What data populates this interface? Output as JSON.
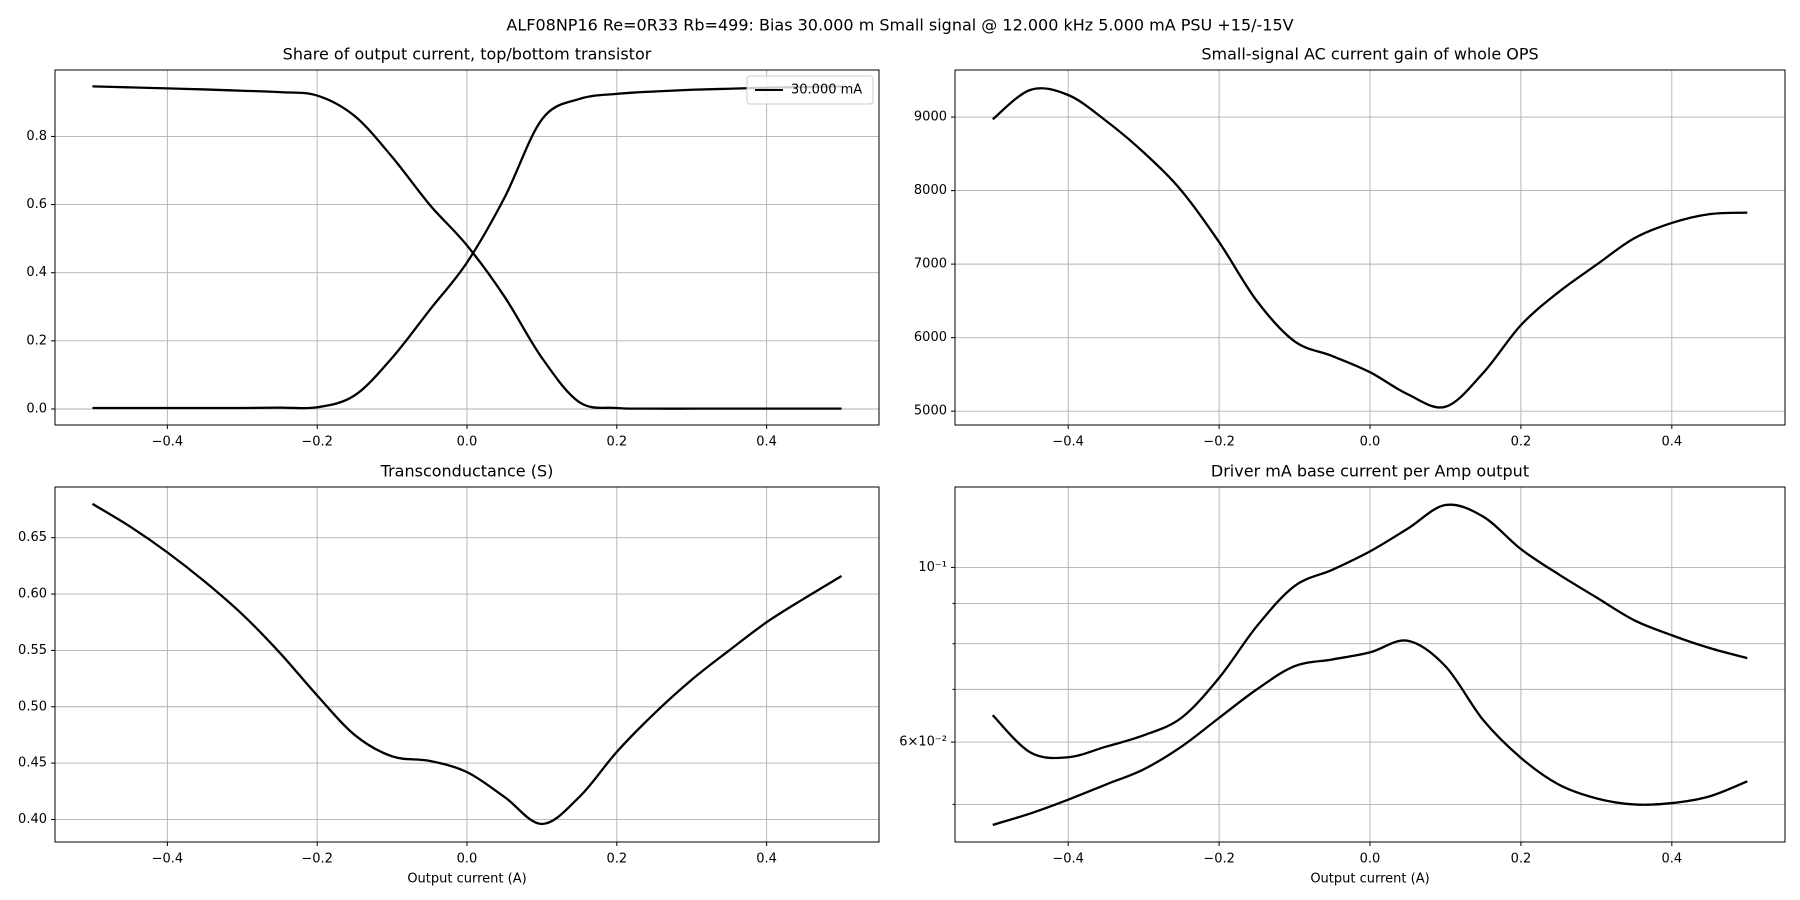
{
  "title": "ALF08NP16 Re=0R33 Rb=499: Bias 30.000 m Small signal @ 12.000 kHz 5.000 mA PSU +15/-15V",
  "chart_data": [
    {
      "type": "line",
      "title": "Share of output current, top/bottom transistor",
      "x": [
        -0.5,
        -0.45,
        -0.4,
        -0.35,
        -0.3,
        -0.25,
        -0.2,
        -0.15,
        -0.1,
        -0.05,
        0,
        0.05,
        0.1,
        0.15,
        0.2,
        0.25,
        0.3,
        0.35,
        0.4,
        0.45,
        0.5
      ],
      "series": [
        {
          "name": "30.000 mA",
          "color": "#000000",
          "values": [
            0.947,
            0.944,
            0.941,
            0.938,
            0.934,
            0.93,
            0.92,
            0.86,
            0.74,
            0.6,
            0.48,
            0.33,
            0.15,
            0.02,
            0.003,
            0.001,
            0.001,
            0.001,
            0.001,
            0.001,
            0.001
          ]
        },
        {
          "color": "#000000",
          "values": [
            0.003,
            0.003,
            0.003,
            0.003,
            0.003,
            0.004,
            0.005,
            0.04,
            0.15,
            0.29,
            0.43,
            0.62,
            0.85,
            0.91,
            0.925,
            0.932,
            0.937,
            0.94,
            0.943,
            0.945,
            0.947
          ]
        }
      ],
      "xlim": [
        -0.55,
        0.55
      ],
      "xticks": [
        {
          "value": -0.4,
          "label": "−0.4"
        },
        {
          "value": -0.2,
          "label": "−0.2"
        },
        {
          "value": 0,
          "label": "0.0"
        },
        0.2,
        0.4
      ],
      "ylim": [
        -0.047,
        0.995
      ],
      "yticks": [
        {
          "value": 0,
          "label": "0.0"
        },
        0.2,
        0.4,
        0.6,
        0.8
      ],
      "grid": true,
      "legend": "upper right"
    },
    {
      "type": "line",
      "title": "Small-signal AC current gain of whole OPS",
      "x": [
        -0.5,
        -0.45,
        -0.4,
        -0.35,
        -0.3,
        -0.25,
        -0.2,
        -0.15,
        -0.1,
        -0.05,
        0,
        0.05,
        0.1,
        0.15,
        0.2,
        0.25,
        0.3,
        0.35,
        0.4,
        0.45,
        0.5
      ],
      "series": [
        {
          "color": "#000000",
          "values": [
            8970,
            9370,
            9300,
            8950,
            8520,
            8000,
            7300,
            6500,
            5950,
            5750,
            5530,
            5230,
            5060,
            5520,
            6170,
            6620,
            6990,
            7350,
            7560,
            7680,
            7700
          ]
        }
      ],
      "xlim": [
        -0.55,
        0.55
      ],
      "xticks": [
        {
          "value": -0.4,
          "label": "−0.4"
        },
        {
          "value": -0.2,
          "label": "−0.2"
        },
        {
          "value": 0,
          "label": "0.0"
        },
        0.2,
        0.4
      ],
      "ylim": [
        4812,
        9640
      ],
      "yticks": [
        5000,
        6000,
        7000,
        8000,
        9000
      ],
      "grid": true
    },
    {
      "type": "line",
      "title": "Transconductance (S)",
      "xlabel": "Output current (A)",
      "x": [
        -0.5,
        -0.45,
        -0.4,
        -0.35,
        -0.3,
        -0.25,
        -0.2,
        -0.15,
        -0.1,
        -0.05,
        0,
        0.05,
        0.1,
        0.15,
        0.2,
        0.25,
        0.3,
        0.35,
        0.4,
        0.45,
        0.5
      ],
      "series": [
        {
          "color": "#000000",
          "values": [
            0.68,
            0.66,
            0.637,
            0.611,
            0.582,
            0.548,
            0.51,
            0.475,
            0.456,
            0.452,
            0.442,
            0.42,
            0.396,
            0.42,
            0.46,
            0.494,
            0.524,
            0.55,
            0.575,
            0.596,
            0.616
          ]
        }
      ],
      "xlim": [
        -0.55,
        0.55
      ],
      "xticks": [
        {
          "value": -0.4,
          "label": "−0.4"
        },
        {
          "value": -0.2,
          "label": "−0.2"
        },
        {
          "value": 0,
          "label": "0.0"
        },
        0.2,
        0.4
      ],
      "ylim": [
        0.38,
        0.695
      ],
      "yticks": [
        {
          "value": 0.4,
          "label": "0.40"
        },
        0.45,
        {
          "value": 0.5,
          "label": "0.50"
        },
        0.55,
        {
          "value": 0.6,
          "label": "0.60"
        },
        0.65
      ],
      "grid": true
    },
    {
      "type": "line",
      "title": "Driver mA base current per Amp output",
      "xlabel": "Output current (A)",
      "x": [
        -0.5,
        -0.45,
        -0.4,
        -0.35,
        -0.3,
        -0.25,
        -0.2,
        -0.15,
        -0.1,
        -0.05,
        0,
        0.05,
        0.1,
        0.15,
        0.2,
        0.25,
        0.3,
        0.35,
        0.4,
        0.45,
        0.5
      ],
      "series": [
        {
          "color": "#000000",
          "values": [
            0.0649,
            0.0582,
            0.0574,
            0.0592,
            0.0612,
            0.0644,
            0.0724,
            0.0842,
            0.0947,
            0.0993,
            0.1048,
            0.112,
            0.12,
            0.116,
            0.1055,
            0.098,
            0.0916,
            0.0857,
            0.082,
            0.079,
            0.0767
          ]
        },
        {
          "color": "#000000",
          "values": [
            0.0471,
            0.0487,
            0.0507,
            0.053,
            0.0554,
            0.0592,
            0.0644,
            0.07,
            0.0749,
            0.0764,
            0.078,
            0.0807,
            0.0749,
            0.064,
            0.0573,
            0.053,
            0.0509,
            0.05,
            0.0502,
            0.0512,
            0.0535
          ]
        }
      ],
      "xlim": [
        -0.55,
        0.55
      ],
      "xticks": [
        {
          "value": -0.4,
          "label": "−0.4"
        },
        {
          "value": -0.2,
          "label": "−0.2"
        },
        {
          "value": 0,
          "label": "0.0"
        },
        0.2,
        0.4
      ],
      "ylim": [
        0.0448,
        0.1265
      ],
      "log_y": true,
      "yticks": [
        {
          "value": 0.06,
          "label": "6×10⁻²"
        },
        {
          "value": 0.1,
          "label": "10⁻¹"
        }
      ],
      "yticks_minor": [
        0.05,
        0.07,
        0.08,
        0.09
      ],
      "grid": true
    }
  ]
}
